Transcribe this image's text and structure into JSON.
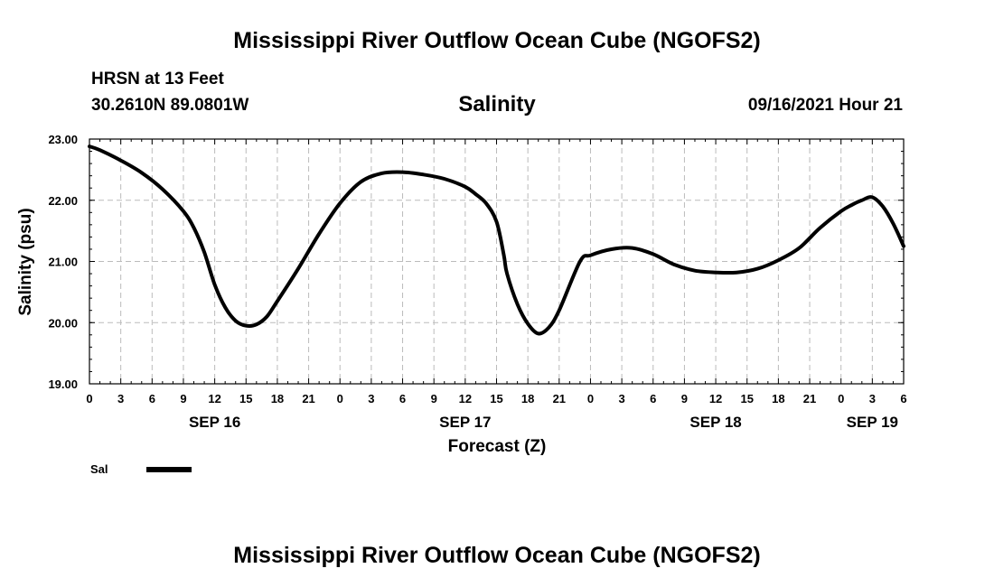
{
  "page": {
    "top_title": "Mississippi River Outflow Ocean Cube (NGOFS2)",
    "bottom_title": "Mississippi River Outflow Ocean Cube (NGOFS2)",
    "station": "HRSN at 13 Feet",
    "coords": "30.2610N  89.0801W",
    "chart_title": "Salinity",
    "datetime": "09/16/2021 Hour 21"
  },
  "chart_data": {
    "type": "line",
    "title": "Salinity",
    "xlabel": "Forecast (Z)",
    "ylabel": "Salinity (psu)",
    "ylim": [
      19.0,
      23.0
    ],
    "yticks": [
      "19.00",
      "20.00",
      "21.00",
      "22.00",
      "23.00"
    ],
    "xlim": [
      0,
      78
    ],
    "xtick_labels": [
      "0",
      "3",
      "6",
      "9",
      "12",
      "15",
      "18",
      "21",
      "0",
      "3",
      "6",
      "9",
      "12",
      "15",
      "18",
      "21",
      "0",
      "3",
      "6",
      "9",
      "12",
      "15",
      "18",
      "21",
      "0",
      "3",
      "6"
    ],
    "date_labels": [
      {
        "label": "SEP 16",
        "hour": 12
      },
      {
        "label": "SEP 17",
        "hour": 36
      },
      {
        "label": "SEP 18",
        "hour": 60
      },
      {
        "label": "SEP 19",
        "hour": 75
      }
    ],
    "grid": true,
    "line_color": "#000000",
    "series": [
      {
        "name": "Sal",
        "x": [
          0,
          1,
          3,
          5,
          7,
          9,
          10,
          11,
          12,
          13,
          14,
          15,
          16,
          17,
          18,
          20,
          22,
          24,
          26,
          28,
          30,
          32,
          34,
          36,
          37,
          38,
          39,
          39.7,
          40,
          41,
          42,
          43,
          44,
          45,
          47,
          48,
          50,
          52,
          54,
          56,
          58,
          60,
          62,
          64,
          66,
          68,
          70,
          72,
          73,
          74,
          75,
          76,
          77,
          78
        ],
        "y": [
          22.88,
          22.82,
          22.65,
          22.45,
          22.18,
          21.82,
          21.55,
          21.15,
          20.62,
          20.25,
          20.03,
          19.95,
          19.97,
          20.1,
          20.35,
          20.88,
          21.45,
          21.95,
          22.3,
          22.44,
          22.46,
          22.42,
          22.35,
          22.22,
          22.1,
          21.95,
          21.65,
          21.1,
          20.8,
          20.3,
          19.98,
          19.82,
          19.92,
          20.2,
          21.0,
          21.1,
          21.2,
          21.22,
          21.12,
          20.95,
          20.85,
          20.82,
          20.82,
          20.88,
          21.02,
          21.22,
          21.55,
          21.82,
          21.92,
          22.0,
          22.05,
          21.9,
          21.62,
          21.25
        ]
      }
    ]
  },
  "legend": {
    "label": "Sal",
    "color": "#000000"
  }
}
